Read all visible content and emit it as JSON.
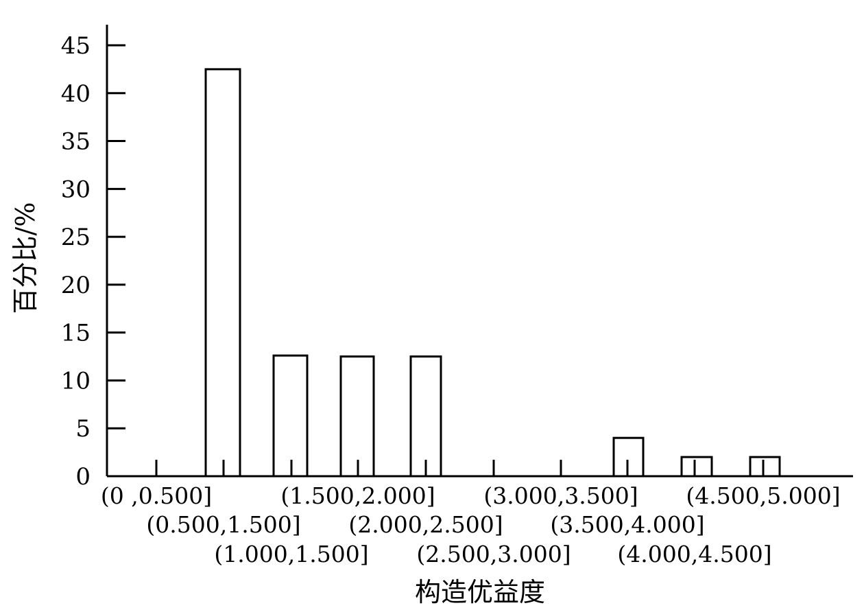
{
  "chart_data": {
    "type": "bar",
    "title": "",
    "xlabel": "构造优益度",
    "ylabel": "百分比/%",
    "ylim": [
      0,
      45
    ],
    "yticks": [
      0,
      5,
      10,
      15,
      20,
      25,
      30,
      35,
      40,
      45
    ],
    "categories": [
      "(0 ,0.500]",
      "(0.500,1.500]",
      "(1.000,1.500]",
      "(1.500,2.000]",
      "(2.000,2.500]",
      "(2.500,3.000]",
      "(3.000,3.500]",
      "(3.500,4.000]",
      "(4.000,4.500]",
      "(4.500,5.000]"
    ],
    "values": [
      0,
      42.5,
      12.6,
      12.5,
      12.5,
      0,
      0,
      4.0,
      2.0,
      2.0
    ],
    "bar_fill": "#ffffff",
    "bar_stroke": "#000000",
    "grid": false,
    "legend": "none"
  }
}
